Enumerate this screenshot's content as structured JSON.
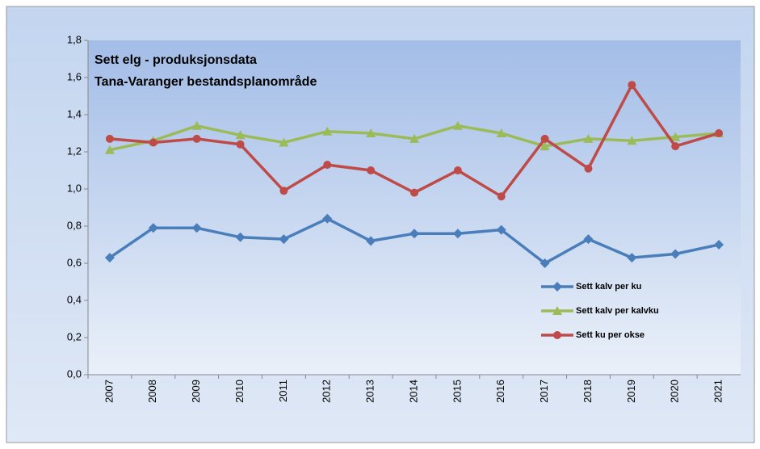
{
  "chart_data": {
    "type": "line",
    "title": [
      "Sett elg - produksjonsdata",
      "Tana-Varanger bestandsplanområde"
    ],
    "categories": [
      "2007",
      "2008",
      "2009",
      "2010",
      "2011",
      "2012",
      "2013",
      "2014",
      "2015",
      "2016",
      "2017",
      "2018",
      "2019",
      "2020",
      "2021"
    ],
    "series": [
      {
        "name": "Sett kalv per ku",
        "color": "#4a7ebb",
        "marker": "diamond",
        "values": [
          0.63,
          0.79,
          0.79,
          0.74,
          0.73,
          0.84,
          0.72,
          0.76,
          0.76,
          0.78,
          0.6,
          0.73,
          0.63,
          0.65,
          0.7
        ]
      },
      {
        "name": "Sett kalv per kalvku",
        "color": "#9bbb59",
        "marker": "triangle",
        "values": [
          1.21,
          1.26,
          1.34,
          1.29,
          1.25,
          1.31,
          1.3,
          1.27,
          1.34,
          1.3,
          1.23,
          1.27,
          1.26,
          1.28,
          1.3
        ]
      },
      {
        "name": "Sett ku per okse",
        "color": "#be4b48",
        "marker": "circle",
        "values": [
          1.27,
          1.25,
          1.27,
          1.24,
          0.99,
          1.13,
          1.1,
          0.98,
          1.1,
          0.96,
          1.27,
          1.11,
          1.56,
          1.23,
          1.3
        ]
      }
    ],
    "ylim": [
      0,
      1.8
    ],
    "yticks": [
      {
        "value": 0,
        "label": "0,0"
      },
      {
        "value": 0.2,
        "label": "0,2"
      },
      {
        "value": 0.4,
        "label": "0,4"
      },
      {
        "value": 0.6,
        "label": "0,6"
      },
      {
        "value": 0.8,
        "label": "0,8"
      },
      {
        "value": 1.0,
        "label": "1,0"
      },
      {
        "value": 1.2,
        "label": "1,2"
      },
      {
        "value": 1.4,
        "label": "1,4"
      },
      {
        "value": 1.6,
        "label": "1,6"
      },
      {
        "value": 1.8,
        "label": "1,8"
      }
    ],
    "legend": "right"
  }
}
